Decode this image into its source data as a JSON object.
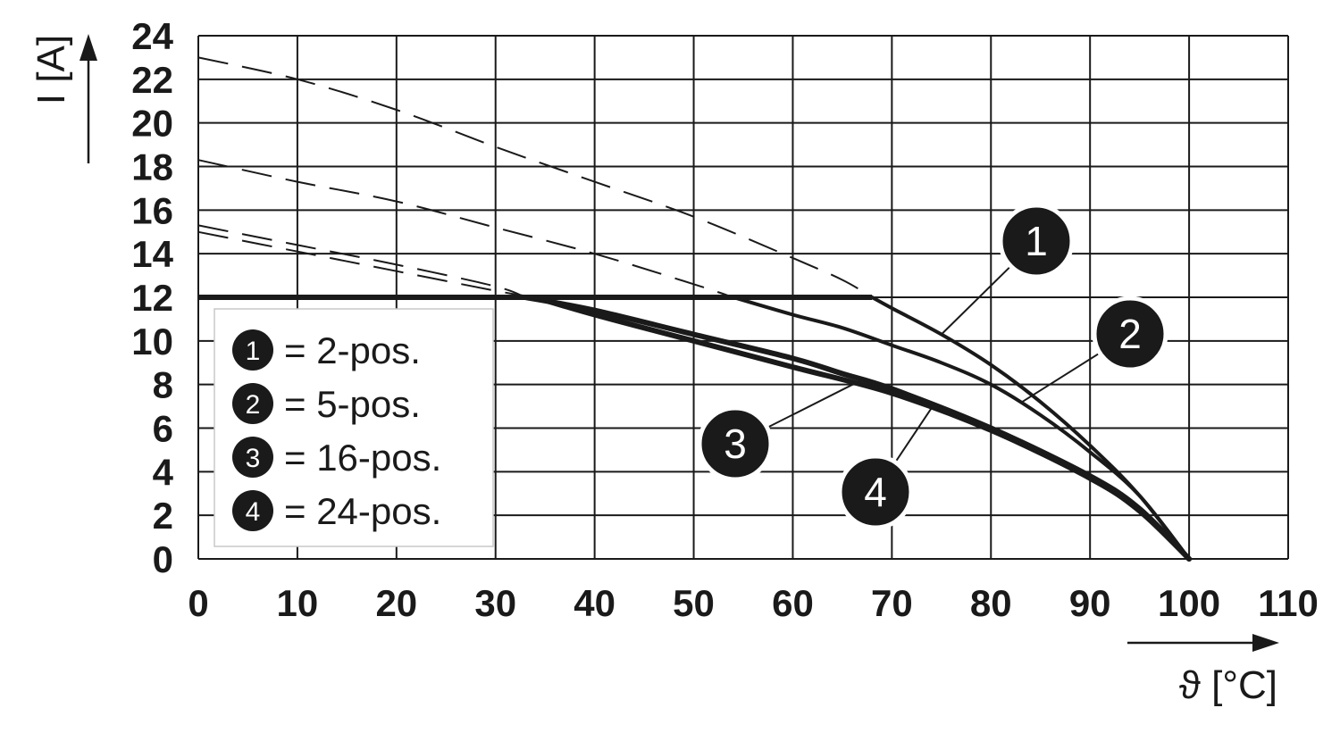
{
  "chart_data": {
    "type": "line",
    "xlabel": "ϑ [°C]",
    "ylabel": "I [A]",
    "xlim": [
      0,
      110
    ],
    "ylim": [
      0,
      24
    ],
    "x_ticks": [
      "0",
      "10",
      "20",
      "30",
      "40",
      "50",
      "60",
      "70",
      "80",
      "90",
      "100",
      "110"
    ],
    "y_ticks": [
      "0",
      "2",
      "4",
      "6",
      "8",
      "10",
      "12",
      "14",
      "16",
      "18",
      "20",
      "22",
      "24"
    ],
    "grid": true,
    "legend_position": "bottom-left",
    "max_current_limit": 12,
    "series": [
      {
        "name": "2-pos.",
        "marker": "1",
        "x": [
          0,
          10,
          20,
          30,
          40,
          50,
          60,
          65,
          68,
          70,
          75,
          80,
          85,
          90,
          95,
          100
        ],
        "values": [
          23.0,
          22.0,
          20.6,
          18.9,
          17.3,
          15.7,
          13.8,
          12.8,
          12.0,
          11.5,
          10.3,
          8.9,
          7.2,
          5.2,
          2.9,
          0
        ]
      },
      {
        "name": "5-pos.",
        "marker": "2",
        "x": [
          0,
          10,
          20,
          30,
          40,
          50,
          54,
          60,
          65,
          70,
          75,
          80,
          85,
          90,
          95,
          100
        ],
        "values": [
          18.3,
          17.3,
          16.4,
          15.2,
          14.0,
          12.6,
          12.0,
          11.2,
          10.6,
          9.8,
          9.0,
          8.0,
          6.6,
          4.9,
          2.9,
          0
        ]
      },
      {
        "name": "16-pos.",
        "marker": "3",
        "x": [
          0,
          10,
          20,
          30,
          33,
          40,
          50,
          60,
          65,
          70,
          80,
          90,
          95,
          100
        ],
        "values": [
          15.3,
          14.4,
          13.5,
          12.5,
          12.0,
          11.4,
          10.3,
          9.2,
          8.5,
          7.8,
          6.0,
          3.8,
          2.3,
          0
        ]
      },
      {
        "name": "24-pos.",
        "marker": "4",
        "x": [
          0,
          10,
          20,
          30,
          34,
          40,
          50,
          60,
          70,
          80,
          90,
          95,
          100
        ],
        "values": [
          15.0,
          14.1,
          13.2,
          12.3,
          12.0,
          11.2,
          10.0,
          8.8,
          7.6,
          5.9,
          3.7,
          2.2,
          0
        ]
      }
    ]
  },
  "legend": {
    "items": [
      {
        "marker": "1",
        "label": "= 2-pos."
      },
      {
        "marker": "2",
        "label": "= 5-pos."
      },
      {
        "marker": "3",
        "label": "= 16-pos."
      },
      {
        "marker": "4",
        "label": "= 24-pos."
      }
    ]
  },
  "callouts": [
    {
      "marker": "1",
      "series": 0,
      "anchor_x": 75
    },
    {
      "marker": "2",
      "series": 1,
      "anchor_x": 83
    },
    {
      "marker": "3",
      "series": 2,
      "anchor_x": 67
    },
    {
      "marker": "4",
      "series": 3,
      "anchor_x": 74
    }
  ],
  "colors": {
    "ink": "#1a1a1a",
    "background": "#ffffff"
  }
}
